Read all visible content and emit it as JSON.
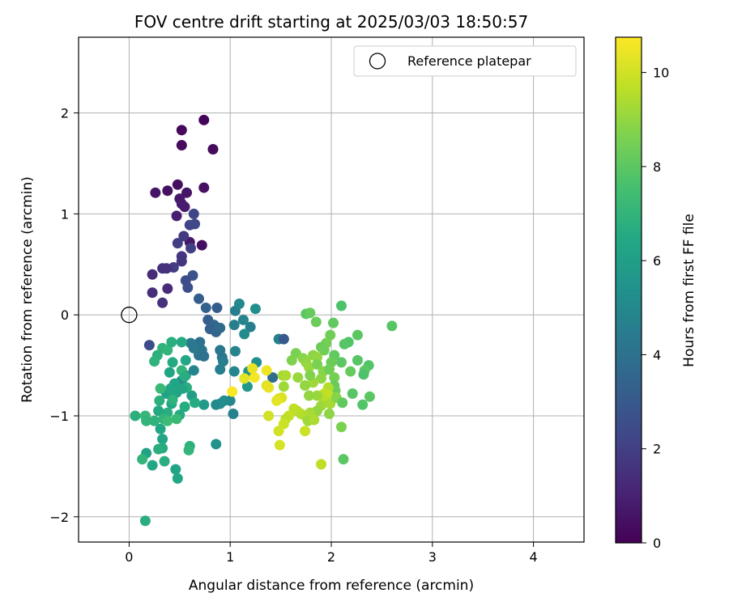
{
  "chart_data": {
    "type": "scatter",
    "title": "FOV centre drift starting at 2025/03/03 18:50:57",
    "xlabel": "Angular distance from reference (arcmin)",
    "ylabel": "Rotation from reference (arcmin)",
    "xlim": [
      -0.5,
      4.5
    ],
    "ylim": [
      -2.25,
      2.75
    ],
    "xticks": [
      0,
      1,
      2,
      3,
      4
    ],
    "yticks": [
      -2,
      -1,
      0,
      1,
      2
    ],
    "xtick_labels": [
      "0",
      "1",
      "2",
      "3",
      "4"
    ],
    "ytick_labels": [
      "−2",
      "−1",
      "0",
      "1",
      "2"
    ],
    "grid": true,
    "legend": {
      "position": "top-right",
      "entries": [
        "Reference platepar"
      ]
    },
    "reference_point": {
      "x": 0,
      "y": 0
    },
    "colorbar": {
      "label": "Hours from first FF file",
      "range": [
        0,
        10.75
      ],
      "ticks": [
        0,
        2,
        4,
        6,
        8,
        10
      ],
      "tick_labels": [
        "0",
        "2",
        "4",
        "6",
        "8",
        "10"
      ],
      "colormap": "viridis"
    },
    "points": [
      {
        "x": 0.74,
        "y": 1.93,
        "h": 0.1
      },
      {
        "x": 0.52,
        "y": 1.83,
        "h": 0.2
      },
      {
        "x": 0.52,
        "y": 1.68,
        "h": 0.3
      },
      {
        "x": 0.83,
        "y": 1.64,
        "h": 0.3
      },
      {
        "x": 0.48,
        "y": 1.29,
        "h": 0.4
      },
      {
        "x": 0.74,
        "y": 1.26,
        "h": 0.5
      },
      {
        "x": 0.38,
        "y": 1.23,
        "h": 0.5
      },
      {
        "x": 0.26,
        "y": 1.21,
        "h": 0.6
      },
      {
        "x": 0.57,
        "y": 1.21,
        "h": 0.6
      },
      {
        "x": 0.5,
        "y": 1.15,
        "h": 0.7
      },
      {
        "x": 0.52,
        "y": 1.1,
        "h": 0.8
      },
      {
        "x": 0.55,
        "y": 1.07,
        "h": 0.8
      },
      {
        "x": 0.47,
        "y": 0.98,
        "h": 0.9
      },
      {
        "x": 0.72,
        "y": 0.69,
        "h": 0.4
      },
      {
        "x": 0.6,
        "y": 0.72,
        "h": 0.7
      },
      {
        "x": 0.64,
        "y": 1.0,
        "h": 2.2
      },
      {
        "x": 0.6,
        "y": 0.89,
        "h": 2.2
      },
      {
        "x": 0.65,
        "y": 0.9,
        "h": 2.3
      },
      {
        "x": 0.54,
        "y": 0.78,
        "h": 1.8
      },
      {
        "x": 0.48,
        "y": 0.71,
        "h": 1.9
      },
      {
        "x": 0.61,
        "y": 0.66,
        "h": 2.0
      },
      {
        "x": 0.52,
        "y": 0.58,
        "h": 1.6
      },
      {
        "x": 0.52,
        "y": 0.53,
        "h": 1.6
      },
      {
        "x": 0.44,
        "y": 0.47,
        "h": 1.9
      },
      {
        "x": 0.33,
        "y": 0.46,
        "h": 1.5
      },
      {
        "x": 0.37,
        "y": 0.46,
        "h": 1.5
      },
      {
        "x": 0.23,
        "y": 0.4,
        "h": 1.3
      },
      {
        "x": 0.63,
        "y": 0.39,
        "h": 2.7
      },
      {
        "x": 0.56,
        "y": 0.34,
        "h": 2.5
      },
      {
        "x": 0.38,
        "y": 0.26,
        "h": 1.3
      },
      {
        "x": 0.58,
        "y": 0.27,
        "h": 2.6
      },
      {
        "x": 0.23,
        "y": 0.22,
        "h": 1.4
      },
      {
        "x": 0.33,
        "y": 0.12,
        "h": 1.5
      },
      {
        "x": 0.69,
        "y": 0.16,
        "h": 3.2
      },
      {
        "x": 0.76,
        "y": 0.07,
        "h": 3.4
      },
      {
        "x": 0.87,
        "y": 0.07,
        "h": 3.1
      },
      {
        "x": 0.78,
        "y": -0.05,
        "h": 3.2
      },
      {
        "x": 0.84,
        "y": -0.1,
        "h": 3.6
      },
      {
        "x": 0.8,
        "y": -0.14,
        "h": 3.3
      },
      {
        "x": 0.86,
        "y": -0.17,
        "h": 3.5
      },
      {
        "x": 0.9,
        "y": -0.13,
        "h": 3.7
      },
      {
        "x": 0.7,
        "y": -0.27,
        "h": 4.0
      },
      {
        "x": 0.72,
        "y": -0.35,
        "h": 4.1
      },
      {
        "x": 0.69,
        "y": -0.4,
        "h": 4.2
      },
      {
        "x": 0.74,
        "y": -0.41,
        "h": 4.0
      },
      {
        "x": 0.61,
        "y": -0.28,
        "h": 4.4
      },
      {
        "x": 0.64,
        "y": -0.33,
        "h": 4.3
      },
      {
        "x": 0.9,
        "y": -0.35,
        "h": 4.3
      },
      {
        "x": 0.92,
        "y": -0.42,
        "h": 4.2
      },
      {
        "x": 0.93,
        "y": -0.46,
        "h": 4.5
      },
      {
        "x": 0.9,
        "y": -0.54,
        "h": 4.6
      },
      {
        "x": 0.64,
        "y": -0.55,
        "h": 4.8
      },
      {
        "x": 0.56,
        "y": -0.6,
        "h": 5.0
      },
      {
        "x": 0.52,
        "y": -0.65,
        "h": 5.2
      },
      {
        "x": 1.04,
        "y": -0.1,
        "h": 4.6
      },
      {
        "x": 1.05,
        "y": -0.36,
        "h": 4.8
      },
      {
        "x": 1.04,
        "y": -0.56,
        "h": 4.9
      },
      {
        "x": 1.0,
        "y": -0.85,
        "h": 4.9
      },
      {
        "x": 1.03,
        "y": -0.98,
        "h": 4.7
      },
      {
        "x": 0.86,
        "y": -0.89,
        "h": 5.0
      },
      {
        "x": 0.9,
        "y": -0.88,
        "h": 5.1
      },
      {
        "x": 0.94,
        "y": -0.85,
        "h": 5.2
      },
      {
        "x": 0.86,
        "y": -1.28,
        "h": 5.4
      },
      {
        "x": 1.05,
        "y": 0.04,
        "h": 4.5
      },
      {
        "x": 1.09,
        "y": 0.11,
        "h": 5.0
      },
      {
        "x": 1.13,
        "y": -0.05,
        "h": 4.8
      },
      {
        "x": 1.2,
        "y": -0.12,
        "h": 4.6
      },
      {
        "x": 1.14,
        "y": -0.19,
        "h": 5.1
      },
      {
        "x": 1.25,
        "y": 0.06,
        "h": 5.3
      },
      {
        "x": 1.26,
        "y": -0.47,
        "h": 5.3
      },
      {
        "x": 1.18,
        "y": -0.56,
        "h": 5.5
      },
      {
        "x": 1.17,
        "y": -0.71,
        "h": 5.7
      },
      {
        "x": 1.48,
        "y": -0.24,
        "h": 4.7
      },
      {
        "x": 1.42,
        "y": -0.62,
        "h": 3.8
      },
      {
        "x": 1.53,
        "y": -0.24,
        "h": 3.0
      },
      {
        "x": 0.74,
        "y": -0.89,
        "h": 5.8
      },
      {
        "x": 0.62,
        "y": -0.8,
        "h": 6.0
      },
      {
        "x": 0.47,
        "y": -0.77,
        "h": 6.2
      },
      {
        "x": 0.45,
        "y": -0.68,
        "h": 6.3
      },
      {
        "x": 0.37,
        "y": -0.78,
        "h": 6.1
      },
      {
        "x": 0.42,
        "y": -0.88,
        "h": 6.4
      },
      {
        "x": 0.55,
        "y": -0.91,
        "h": 6.6
      },
      {
        "x": 0.5,
        "y": -0.99,
        "h": 6.5
      },
      {
        "x": 0.38,
        "y": -0.97,
        "h": 6.7
      },
      {
        "x": 0.3,
        "y": -0.85,
        "h": 6.8
      },
      {
        "x": 0.29,
        "y": -0.95,
        "h": 6.5
      },
      {
        "x": 0.25,
        "y": -1.05,
        "h": 6.9
      },
      {
        "x": 0.34,
        "y": -1.03,
        "h": 7.0
      },
      {
        "x": 0.31,
        "y": -1.13,
        "h": 6.4
      },
      {
        "x": 0.33,
        "y": -1.23,
        "h": 6.3
      },
      {
        "x": 0.33,
        "y": -1.32,
        "h": 6.6
      },
      {
        "x": 0.29,
        "y": -1.33,
        "h": 6.7
      },
      {
        "x": 0.17,
        "y": -1.37,
        "h": 6.2
      },
      {
        "x": 0.13,
        "y": -1.43,
        "h": 7.0
      },
      {
        "x": 0.23,
        "y": -1.49,
        "h": 6.4
      },
      {
        "x": 0.35,
        "y": -1.45,
        "h": 6.7
      },
      {
        "x": 0.46,
        "y": -1.53,
        "h": 6.2
      },
      {
        "x": 0.48,
        "y": -1.62,
        "h": 6.4
      },
      {
        "x": 0.6,
        "y": -1.3,
        "h": 6.8
      },
      {
        "x": 0.59,
        "y": -1.34,
        "h": 7.0
      },
      {
        "x": 0.16,
        "y": -2.04,
        "h": 6.7
      },
      {
        "x": 0.06,
        "y": -1.0,
        "h": 6.8
      },
      {
        "x": 0.16,
        "y": -1.0,
        "h": 7.1
      },
      {
        "x": 0.17,
        "y": -1.05,
        "h": 7.0
      },
      {
        "x": 0.38,
        "y": -1.05,
        "h": 7.3
      },
      {
        "x": 0.47,
        "y": -1.03,
        "h": 7.2
      },
      {
        "x": 0.65,
        "y": -0.87,
        "h": 6.6
      },
      {
        "x": 0.2,
        "y": -0.3,
        "h": 2.5
      },
      {
        "x": 0.28,
        "y": -0.4,
        "h": 6.8
      },
      {
        "x": 0.25,
        "y": -0.46,
        "h": 6.9
      },
      {
        "x": 0.33,
        "y": -0.33,
        "h": 6.9
      },
      {
        "x": 0.38,
        "y": -0.35,
        "h": 7.0
      },
      {
        "x": 0.42,
        "y": -0.27,
        "h": 6.7
      },
      {
        "x": 0.43,
        "y": -0.47,
        "h": 6.5
      },
      {
        "x": 0.4,
        "y": -0.57,
        "h": 6.3
      },
      {
        "x": 0.52,
        "y": -0.27,
        "h": 6.5
      },
      {
        "x": 0.56,
        "y": -0.45,
        "h": 6.4
      },
      {
        "x": 0.52,
        "y": -0.55,
        "h": 7.0
      },
      {
        "x": 0.55,
        "y": -0.61,
        "h": 6.7
      },
      {
        "x": 0.57,
        "y": -0.72,
        "h": 6.8
      },
      {
        "x": 0.53,
        "y": -0.73,
        "h": 6.3
      },
      {
        "x": 0.41,
        "y": -0.73,
        "h": 6.4
      },
      {
        "x": 0.31,
        "y": -0.73,
        "h": 7.2
      },
      {
        "x": 0.43,
        "y": -0.84,
        "h": 6.9
      },
      {
        "x": 1.75,
        "y": 0.01,
        "h": 8.0
      },
      {
        "x": 1.79,
        "y": 0.02,
        "h": 8.2
      },
      {
        "x": 2.1,
        "y": 0.09,
        "h": 7.7
      },
      {
        "x": 1.85,
        "y": -0.07,
        "h": 8.3
      },
      {
        "x": 2.02,
        "y": -0.08,
        "h": 8.1
      },
      {
        "x": 2.6,
        "y": -0.11,
        "h": 7.9
      },
      {
        "x": 1.99,
        "y": -0.2,
        "h": 8.4
      },
      {
        "x": 1.95,
        "y": -0.28,
        "h": 8.5
      },
      {
        "x": 2.26,
        "y": -0.2,
        "h": 8.0
      },
      {
        "x": 2.17,
        "y": -0.27,
        "h": 7.8
      },
      {
        "x": 2.13,
        "y": -0.29,
        "h": 7.9
      },
      {
        "x": 1.9,
        "y": -0.32,
        "h": 8.3
      },
      {
        "x": 1.93,
        "y": -0.35,
        "h": 8.4
      },
      {
        "x": 1.65,
        "y": -0.38,
        "h": 8.6
      },
      {
        "x": 1.72,
        "y": -0.43,
        "h": 8.8
      },
      {
        "x": 1.61,
        "y": -0.45,
        "h": 8.7
      },
      {
        "x": 1.82,
        "y": -0.4,
        "h": 8.9
      },
      {
        "x": 1.86,
        "y": -0.42,
        "h": 9.0
      },
      {
        "x": 2.03,
        "y": -0.4,
        "h": 8.1
      },
      {
        "x": 2.0,
        "y": -0.47,
        "h": 8.3
      },
      {
        "x": 2.26,
        "y": -0.45,
        "h": 7.9
      },
      {
        "x": 2.37,
        "y": -0.5,
        "h": 7.8
      },
      {
        "x": 2.33,
        "y": -0.55,
        "h": 8.0
      },
      {
        "x": 2.19,
        "y": -0.56,
        "h": 8.2
      },
      {
        "x": 2.32,
        "y": -0.59,
        "h": 7.7
      },
      {
        "x": 2.1,
        "y": -0.47,
        "h": 8.0
      },
      {
        "x": 1.75,
        "y": -0.47,
        "h": 9.0
      },
      {
        "x": 1.78,
        "y": -0.52,
        "h": 9.1
      },
      {
        "x": 1.86,
        "y": -0.49,
        "h": 8.6
      },
      {
        "x": 1.92,
        "y": -0.56,
        "h": 8.8
      },
      {
        "x": 1.98,
        "y": -0.54,
        "h": 8.4
      },
      {
        "x": 2.03,
        "y": -0.62,
        "h": 8.5
      },
      {
        "x": 1.9,
        "y": -0.63,
        "h": 8.9
      },
      {
        "x": 1.82,
        "y": -0.67,
        "h": 9.2
      },
      {
        "x": 1.74,
        "y": -0.7,
        "h": 9.0
      },
      {
        "x": 1.79,
        "y": -0.6,
        "h": 8.7
      },
      {
        "x": 1.52,
        "y": -0.6,
        "h": 9.3
      },
      {
        "x": 1.55,
        "y": -0.6,
        "h": 9.4
      },
      {
        "x": 1.53,
        "y": -0.71,
        "h": 9.2
      },
      {
        "x": 1.67,
        "y": -0.62,
        "h": 9.1
      },
      {
        "x": 2.03,
        "y": -0.7,
        "h": 8.2
      },
      {
        "x": 2.04,
        "y": -0.75,
        "h": 8.3
      },
      {
        "x": 1.97,
        "y": -0.72,
        "h": 9.5
      },
      {
        "x": 1.93,
        "y": -0.78,
        "h": 9.7
      },
      {
        "x": 1.98,
        "y": -0.8,
        "h": 9.8
      },
      {
        "x": 1.93,
        "y": -0.84,
        "h": 9.6
      },
      {
        "x": 1.99,
        "y": -0.88,
        "h": 9.3
      },
      {
        "x": 2.05,
        "y": -0.82,
        "h": 8.8
      },
      {
        "x": 1.86,
        "y": -0.8,
        "h": 9.1
      },
      {
        "x": 1.78,
        "y": -0.8,
        "h": 9.0
      },
      {
        "x": 1.9,
        "y": -0.9,
        "h": 9.2
      },
      {
        "x": 2.11,
        "y": -0.87,
        "h": 8.1
      },
      {
        "x": 2.21,
        "y": -0.78,
        "h": 7.9
      },
      {
        "x": 2.38,
        "y": -0.81,
        "h": 8.0
      },
      {
        "x": 2.31,
        "y": -0.89,
        "h": 7.8
      },
      {
        "x": 1.98,
        "y": -0.98,
        "h": 8.9
      },
      {
        "x": 1.86,
        "y": -0.95,
        "h": 9.0
      },
      {
        "x": 1.79,
        "y": -0.97,
        "h": 9.3
      },
      {
        "x": 1.75,
        "y": -1.01,
        "h": 9.4
      },
      {
        "x": 1.7,
        "y": -0.98,
        "h": 9.5
      },
      {
        "x": 1.66,
        "y": -0.95,
        "h": 9.6
      },
      {
        "x": 1.63,
        "y": -0.93,
        "h": 9.7
      },
      {
        "x": 1.58,
        "y": -1.0,
        "h": 9.8
      },
      {
        "x": 1.55,
        "y": -1.03,
        "h": 9.7
      },
      {
        "x": 1.53,
        "y": -1.08,
        "h": 9.9
      },
      {
        "x": 1.48,
        "y": -1.15,
        "h": 10.0
      },
      {
        "x": 1.49,
        "y": -1.29,
        "h": 10.1
      },
      {
        "x": 1.74,
        "y": -1.15,
        "h": 9.9
      },
      {
        "x": 1.77,
        "y": -1.05,
        "h": 9.2
      },
      {
        "x": 1.83,
        "y": -1.04,
        "h": 9.4
      },
      {
        "x": 2.1,
        "y": -1.11,
        "h": 8.6
      },
      {
        "x": 2.12,
        "y": -1.43,
        "h": 8.0
      },
      {
        "x": 1.9,
        "y": -1.48,
        "h": 9.7
      },
      {
        "x": 1.36,
        "y": -0.55,
        "h": 10.5
      },
      {
        "x": 1.22,
        "y": -0.53,
        "h": 10.4
      },
      {
        "x": 1.14,
        "y": -0.63,
        "h": 10.3
      },
      {
        "x": 1.24,
        "y": -0.62,
        "h": 10.6
      },
      {
        "x": 1.36,
        "y": -0.7,
        "h": 10.2
      },
      {
        "x": 1.38,
        "y": -0.72,
        "h": 10.4
      },
      {
        "x": 1.48,
        "y": -0.83,
        "h": 10.1
      },
      {
        "x": 1.38,
        "y": -1.0,
        "h": 10.0
      },
      {
        "x": 1.51,
        "y": -0.82,
        "h": 10.2
      },
      {
        "x": 1.02,
        "y": -0.76,
        "h": 10.7
      },
      {
        "x": 1.46,
        "y": -0.85,
        "h": 10.3
      }
    ]
  }
}
